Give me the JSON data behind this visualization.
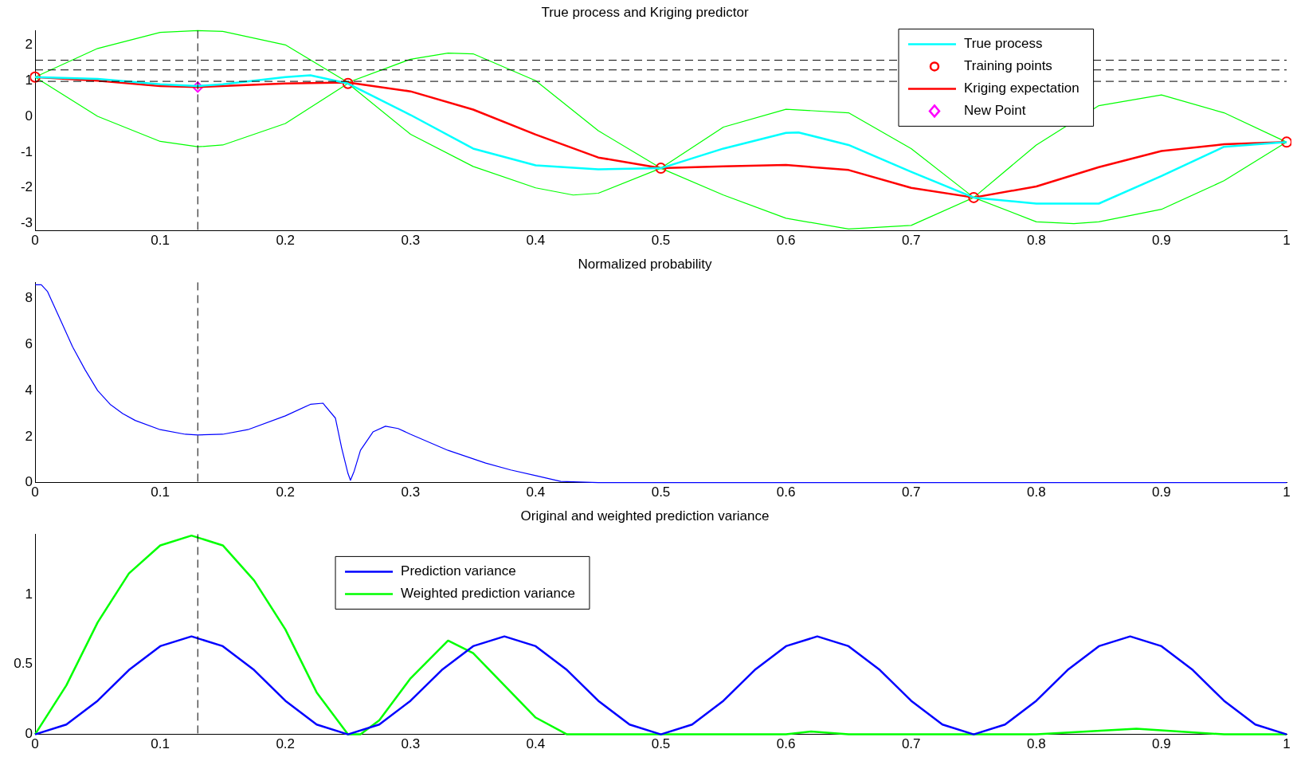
{
  "chart_data": [
    {
      "type": "line",
      "title": "True process and Kriging predictor",
      "xlim": [
        0,
        1
      ],
      "xticks": [
        0,
        0.1,
        0.2,
        0.3,
        0.4,
        0.5,
        0.6,
        0.7,
        0.8,
        0.9,
        1
      ],
      "ylim": [
        -3.2,
        2.4
      ],
      "yticks": [
        -3,
        -2,
        -1,
        0,
        1,
        2
      ],
      "grid": false,
      "legend": "top right",
      "ref_lines": [
        {
          "axis": "x",
          "value": 0.13,
          "line_style": "dashed",
          "color": "#000000"
        },
        {
          "axis": "y",
          "value": 1.57,
          "line_style": "dashed",
          "color": "#000000"
        },
        {
          "axis": "y",
          "value": 1.3,
          "line_style": "dashed",
          "color": "#000000"
        },
        {
          "axis": "y",
          "value": 0.98,
          "line_style": "dashed",
          "color": "#000000"
        }
      ],
      "series": [
        {
          "name": "True process",
          "color": "#00ffff",
          "x": [
            0,
            0.05,
            0.1,
            0.13,
            0.15,
            0.2,
            0.22,
            0.25,
            0.3,
            0.35,
            0.4,
            0.45,
            0.5,
            0.55,
            0.6,
            0.61,
            0.65,
            0.7,
            0.75,
            0.8,
            0.85,
            0.9,
            0.95,
            1
          ],
          "values": [
            1.1,
            1.05,
            0.9,
            0.85,
            0.9,
            1.1,
            1.15,
            0.92,
            0.04,
            -0.9,
            -1.37,
            -1.48,
            -1.45,
            -0.9,
            -0.46,
            -0.45,
            -0.8,
            -1.55,
            -2.27,
            -2.44,
            -2.44,
            -1.67,
            -0.85,
            -0.72
          ]
        },
        {
          "name": "Training points",
          "type": "scatter",
          "marker": "circle",
          "color": "#ff0000",
          "x": [
            0,
            0.25,
            0.5,
            0.75,
            1
          ],
          "values": [
            1.1,
            0.92,
            -1.45,
            -2.27,
            -0.72
          ]
        },
        {
          "name": "Kriging expectation",
          "color": "#ff0000",
          "x": [
            0,
            0.05,
            0.1,
            0.13,
            0.2,
            0.25,
            0.3,
            0.35,
            0.4,
            0.45,
            0.5,
            0.55,
            0.6,
            0.65,
            0.7,
            0.75,
            0.8,
            0.85,
            0.9,
            0.95,
            1
          ],
          "values": [
            1.1,
            1.0,
            0.85,
            0.82,
            0.92,
            0.95,
            0.7,
            0.19,
            -0.51,
            -1.15,
            -1.45,
            -1.4,
            -1.36,
            -1.5,
            -2.0,
            -2.27,
            -1.96,
            -1.42,
            -0.97,
            -0.78,
            -0.72
          ]
        },
        {
          "name": "New Point",
          "type": "scatter",
          "marker": "diamond",
          "color": "#ff00ff",
          "x": [
            0.13
          ],
          "values": [
            0.82
          ]
        },
        {
          "color": "#00ff00",
          "x": [
            0,
            0.05,
            0.1,
            0.13,
            0.15,
            0.2,
            0.25,
            0.3,
            0.33,
            0.35,
            0.4,
            0.45,
            0.5,
            0.55,
            0.6,
            0.65,
            0.7,
            0.75,
            0.8,
            0.85,
            0.9,
            0.95,
            1
          ],
          "values": [
            1.1,
            1.9,
            2.35,
            2.4,
            2.38,
            2.0,
            0.95,
            1.6,
            1.77,
            1.75,
            1.0,
            -0.4,
            -1.45,
            -0.3,
            0.2,
            0.1,
            -0.9,
            -2.27,
            -0.8,
            0.3,
            0.6,
            0.1,
            -0.72
          ]
        },
        {
          "color": "#00ff00",
          "x": [
            0,
            0.05,
            0.1,
            0.13,
            0.15,
            0.2,
            0.25,
            0.3,
            0.35,
            0.4,
            0.43,
            0.45,
            0.5,
            0.55,
            0.6,
            0.65,
            0.7,
            0.75,
            0.8,
            0.83,
            0.85,
            0.9,
            0.95,
            1
          ],
          "values": [
            1.1,
            0.0,
            -0.7,
            -0.85,
            -0.8,
            -0.2,
            0.92,
            -0.5,
            -1.4,
            -2.0,
            -2.2,
            -2.15,
            -1.45,
            -2.2,
            -2.85,
            -3.15,
            -3.05,
            -2.27,
            -2.95,
            -3.0,
            -2.95,
            -2.6,
            -1.8,
            -0.72
          ]
        }
      ]
    },
    {
      "type": "line",
      "title": "Normalized probability",
      "xlim": [
        0,
        1
      ],
      "xticks": [
        0,
        0.1,
        0.2,
        0.3,
        0.4,
        0.5,
        0.6,
        0.7,
        0.8,
        0.9,
        1
      ],
      "ylim": [
        0,
        8.7
      ],
      "yticks": [
        0,
        2,
        4,
        6,
        8
      ],
      "grid": false,
      "ref_lines": [
        {
          "axis": "x",
          "value": 0.13,
          "line_style": "dashed",
          "color": "#000000"
        }
      ],
      "series": [
        {
          "color": "#0000ff",
          "x": [
            0,
            0.005,
            0.01,
            0.02,
            0.03,
            0.04,
            0.05,
            0.06,
            0.07,
            0.08,
            0.1,
            0.12,
            0.13,
            0.15,
            0.17,
            0.2,
            0.22,
            0.23,
            0.24,
            0.245,
            0.25,
            0.252,
            0.255,
            0.26,
            0.27,
            0.28,
            0.29,
            0.3,
            0.33,
            0.36,
            0.38,
            0.4,
            0.42,
            0.45,
            0.5,
            0.6,
            0.7,
            0.8,
            0.9,
            1
          ],
          "values": [
            8.6,
            8.6,
            8.3,
            7.1,
            5.9,
            4.9,
            4.0,
            3.4,
            3.0,
            2.7,
            2.3,
            2.1,
            2.07,
            2.1,
            2.3,
            2.9,
            3.4,
            3.45,
            2.8,
            1.5,
            0.4,
            0.1,
            0.5,
            1.4,
            2.2,
            2.45,
            2.35,
            2.1,
            1.4,
            0.85,
            0.55,
            0.3,
            0.05,
            0,
            0,
            0,
            0,
            0,
            0,
            0
          ]
        }
      ]
    },
    {
      "type": "line",
      "title": "Original and weighted prediction variance",
      "xlim": [
        0,
        1
      ],
      "xticks": [
        0,
        0.1,
        0.2,
        0.3,
        0.4,
        0.5,
        0.6,
        0.7,
        0.8,
        0.9,
        1
      ],
      "ylim": [
        0,
        1.43
      ],
      "yticks": [
        0,
        0.5,
        1
      ],
      "grid": false,
      "legend": "top left",
      "ref_lines": [
        {
          "axis": "x",
          "value": 0.13,
          "line_style": "dashed",
          "color": "#000000"
        }
      ],
      "series": [
        {
          "name": "Prediction variance",
          "color": "#0000ff",
          "x": [
            0,
            0.025,
            0.05,
            0.075,
            0.1,
            0.125,
            0.15,
            0.175,
            0.2,
            0.225,
            0.25,
            0.275,
            0.3,
            0.325,
            0.35,
            0.375,
            0.4,
            0.425,
            0.45,
            0.475,
            0.5,
            0.525,
            0.55,
            0.575,
            0.6,
            0.625,
            0.65,
            0.675,
            0.7,
            0.725,
            0.75,
            0.775,
            0.8,
            0.825,
            0.85,
            0.875,
            0.9,
            0.925,
            0.95,
            0.975,
            1
          ],
          "values": [
            0,
            0.07,
            0.24,
            0.46,
            0.63,
            0.7,
            0.63,
            0.46,
            0.24,
            0.07,
            0,
            0.07,
            0.24,
            0.46,
            0.63,
            0.7,
            0.63,
            0.46,
            0.24,
            0.07,
            0,
            0.07,
            0.24,
            0.46,
            0.63,
            0.7,
            0.63,
            0.46,
            0.24,
            0.07,
            0,
            0.07,
            0.24,
            0.46,
            0.63,
            0.7,
            0.63,
            0.46,
            0.24,
            0.07,
            0
          ]
        },
        {
          "name": "Weighted prediction variance",
          "color": "#00ff00",
          "x": [
            0,
            0.025,
            0.05,
            0.075,
            0.1,
            0.125,
            0.15,
            0.175,
            0.2,
            0.225,
            0.25,
            0.26,
            0.275,
            0.3,
            0.33,
            0.35,
            0.375,
            0.4,
            0.425,
            0.5,
            0.6,
            0.62,
            0.65,
            0.8,
            0.88,
            0.95,
            1
          ],
          "values": [
            0,
            0.35,
            0.8,
            1.15,
            1.35,
            1.42,
            1.35,
            1.1,
            0.75,
            0.3,
            0,
            0,
            0.1,
            0.4,
            0.67,
            0.58,
            0.35,
            0.12,
            0,
            0,
            0,
            0.02,
            0,
            0,
            0.04,
            0,
            0
          ]
        }
      ]
    }
  ]
}
